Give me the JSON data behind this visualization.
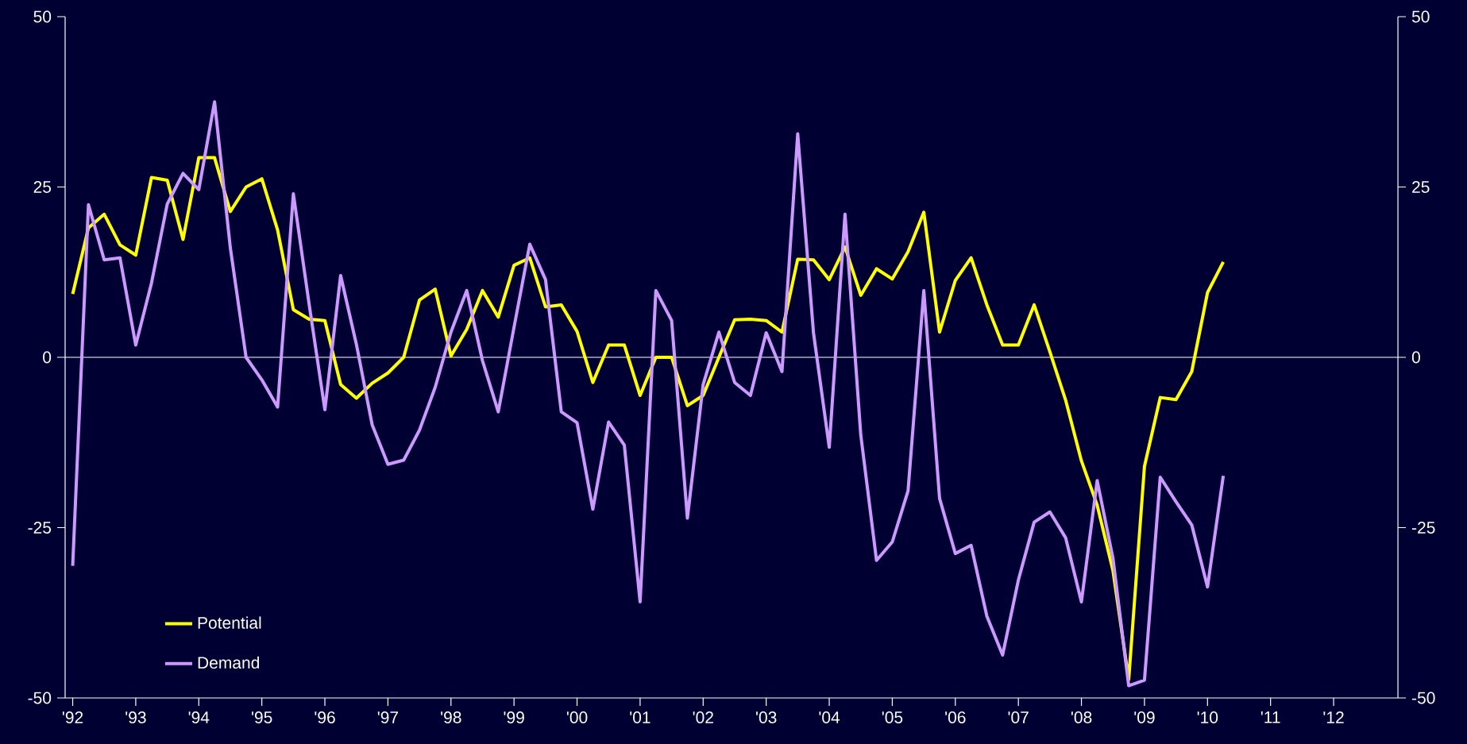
{
  "chart_data": {
    "type": "line",
    "x": [
      1992.0,
      1992.25,
      1992.5,
      1992.75,
      1993.0,
      1993.25,
      1993.5,
      1993.75,
      1994.0,
      1994.25,
      1994.5,
      1994.75,
      1995.0,
      1995.25,
      1995.5,
      1995.75,
      1996.0,
      1996.25,
      1996.5,
      1996.75,
      1997.0,
      1997.25,
      1997.5,
      1997.75,
      1998.0,
      1998.25,
      1998.5,
      1998.75,
      1999.0,
      1999.25,
      1999.5,
      1999.75,
      2000.0,
      2000.25,
      2000.5,
      2000.75,
      2001.0,
      2001.25,
      2001.5,
      2001.75,
      2002.0,
      2002.25,
      2002.5,
      2002.75,
      2003.0,
      2003.25,
      2003.5,
      2003.75,
      2004.0,
      2004.25,
      2004.5,
      2004.75,
      2005.0,
      2005.25,
      2005.5,
      2005.75,
      2006.0,
      2006.25,
      2006.5,
      2006.75,
      2007.0,
      2007.25,
      2007.5,
      2007.75,
      2008.0,
      2008.25,
      2008.5,
      2008.75,
      2009.0,
      2009.25,
      2009.5,
      2009.75,
      2010.0,
      2010.25
    ],
    "series": [
      {
        "name": "Potential",
        "color": "#ffff00",
        "values": [
          9.3,
          19,
          21,
          16.5,
          15,
          26.4,
          26,
          17.3,
          29.3,
          29.3,
          21.4,
          25,
          26.2,
          18.7,
          7,
          5.6,
          5.4,
          -4,
          -6,
          -3.8,
          -2.3,
          0,
          8.4,
          10,
          0.2,
          4.1,
          9.8,
          5.9,
          13.5,
          14.6,
          7.4,
          7.7,
          3.8,
          -3.7,
          1.8,
          1.8,
          -5.6,
          0,
          0,
          -7.1,
          -5.6,
          0,
          5.5,
          5.6,
          5.4,
          3.7,
          14.4,
          14.3,
          11.4,
          16.2,
          9.1,
          13,
          11.5,
          15.5,
          21.3,
          3.7,
          11.3,
          14.6,
          7.7,
          1.8,
          1.8,
          7.7,
          0.8,
          -6.3,
          -15.2,
          -21.7,
          -31.3,
          -47.3,
          -16,
          -5.9,
          -6.2,
          -2.1,
          9.5,
          14
        ]
      },
      {
        "name": "Demand",
        "color": "#cc99ff",
        "values": [
          -30.6,
          22.4,
          14.3,
          14.6,
          1.8,
          10.9,
          22.5,
          27,
          24.6,
          37.5,
          16.1,
          0,
          -3.3,
          -7.3,
          24,
          7.8,
          -7.7,
          12,
          1.9,
          -9.9,
          -15.7,
          -15.1,
          -10.7,
          -4.4,
          3.7,
          9.8,
          -0.5,
          -8,
          4.4,
          16.6,
          11.4,
          -8,
          -9.6,
          -22.3,
          -9.5,
          -12.9,
          -35.9,
          9.8,
          5.4,
          -23.6,
          -4,
          3.7,
          -3.7,
          -5.6,
          3.6,
          -2.1,
          32.8,
          3.6,
          -13.2,
          21,
          -11.4,
          -29.8,
          -27.1,
          -19.6,
          9.8,
          -20.7,
          -28.8,
          -27.6,
          -38,
          -43.7,
          -32.7,
          -24.2,
          -22.7,
          -26.5,
          -35.9,
          -18.1,
          -29.5,
          -48.2,
          -47.4,
          -17.6,
          -21.2,
          -24.6,
          -33.7,
          -17.4
        ]
      }
    ],
    "xlim": [
      1991.88,
      2013.02
    ],
    "xticks": [
      {
        "value": 1992,
        "label": "'92"
      },
      {
        "value": 1993,
        "label": "'93"
      },
      {
        "value": 1994,
        "label": "'94"
      },
      {
        "value": 1995,
        "label": "'95"
      },
      {
        "value": 1996,
        "label": "'96"
      },
      {
        "value": 1997,
        "label": "'97"
      },
      {
        "value": 1998,
        "label": "'98"
      },
      {
        "value": 1999,
        "label": "'99"
      },
      {
        "value": 2000,
        "label": "'00"
      },
      {
        "value": 2001,
        "label": "'01"
      },
      {
        "value": 2002,
        "label": "'02"
      },
      {
        "value": 2003,
        "label": "'03"
      },
      {
        "value": 2004,
        "label": "'04"
      },
      {
        "value": 2005,
        "label": "'05"
      },
      {
        "value": 2006,
        "label": "'06"
      },
      {
        "value": 2007,
        "label": "'07"
      },
      {
        "value": 2008,
        "label": "'08"
      },
      {
        "value": 2009,
        "label": "'09"
      },
      {
        "value": 2010,
        "label": "'10"
      },
      {
        "value": 2011,
        "label": "'11"
      },
      {
        "value": 2012,
        "label": "'12"
      }
    ],
    "ylim": [
      -50,
      50
    ],
    "yticks": [
      -50,
      -25,
      0,
      25,
      50
    ],
    "y2lim": [
      -50,
      50
    ],
    "y2ticks": [
      -50,
      -25,
      0,
      25,
      50
    ],
    "ref_lines": [
      {
        "axis": "y",
        "value": 0,
        "color": "#ffffff"
      }
    ],
    "grid": false,
    "legend": "bottom left",
    "marker": "none",
    "line_style": "solid"
  }
}
